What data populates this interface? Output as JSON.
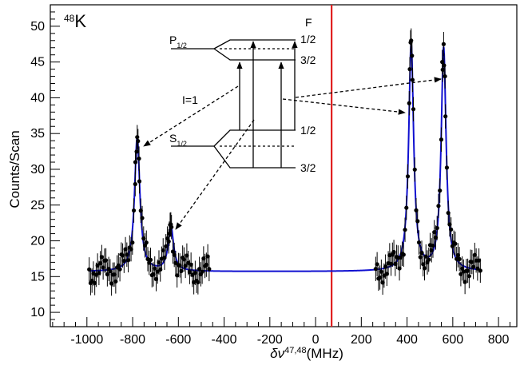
{
  "chart_data": {
    "type": "scatter",
    "title": "",
    "isotope_label": {
      "mass": "48",
      "symbol": "K"
    },
    "xlabel": {
      "prefix": "δν",
      "sup": "47,48",
      "suffix": "(MHz)"
    },
    "ylabel": "Counts/Scan",
    "xlim": [
      -1160,
      880
    ],
    "ylim": [
      8,
      53
    ],
    "x_ticks": [
      -1000,
      -800,
      -600,
      -400,
      -200,
      0,
      200,
      400,
      600,
      800
    ],
    "y_ticks": [
      10,
      15,
      20,
      25,
      30,
      35,
      40,
      45,
      50
    ],
    "x_tick_labels": [
      "-1000",
      "-800",
      "-600",
      "-400",
      "-200",
      "0",
      "200",
      "400",
      "600",
      "800"
    ],
    "y_tick_labels": [
      "10",
      "15",
      "20",
      "25",
      "30",
      "35",
      "40",
      "45",
      "50"
    ],
    "grid": false,
    "legend": "none",
    "reference_line_x": 70,
    "colors": {
      "fit": "#1010d0",
      "points": "#000000",
      "reference": "#e02020",
      "axis": "#000000"
    },
    "fit": {
      "baseline": 15.7,
      "peaks": [
        {
          "center": -780,
          "amplitude": 18.8,
          "hwhm": 14
        },
        {
          "center": -633,
          "amplitude": 6.3,
          "hwhm": 14
        },
        {
          "center": 418,
          "amplitude": 31.8,
          "hwhm": 13
        },
        {
          "center": 560,
          "amplitude": 31.2,
          "hwhm": 13
        }
      ]
    },
    "series": [
      {
        "scan_ranges": [
          [
            -990,
            -460
          ],
          [
            263,
            722
          ]
        ],
        "spacing": 6.1,
        "peak_points": [
          {
            "x": -780,
            "y": 34.5
          },
          {
            "x": -772,
            "y": 31.5
          },
          {
            "x": -788,
            "y": 31.0
          },
          {
            "x": -633,
            "y": 22.3
          },
          {
            "x": -640,
            "y": 21.0
          },
          {
            "x": 418,
            "y": 48.0
          },
          {
            "x": 412,
            "y": 44.0
          },
          {
            "x": 424,
            "y": 42.5
          },
          {
            "x": 560,
            "y": 47.5
          },
          {
            "x": 554,
            "y": 45.0
          },
          {
            "x": 566,
            "y": 43.0
          }
        ],
        "error_bar": 1.7
      }
    ],
    "annotations": {
      "spin": "I=1",
      "upper_state": {
        "letter": "P",
        "sub": "1/2"
      },
      "lower_state": {
        "letter": "S",
        "sub": "1/2"
      },
      "F_header": "F",
      "upper_F": [
        "1/2",
        "3/2"
      ],
      "lower_F": [
        "1/2",
        "3/2"
      ]
    }
  }
}
